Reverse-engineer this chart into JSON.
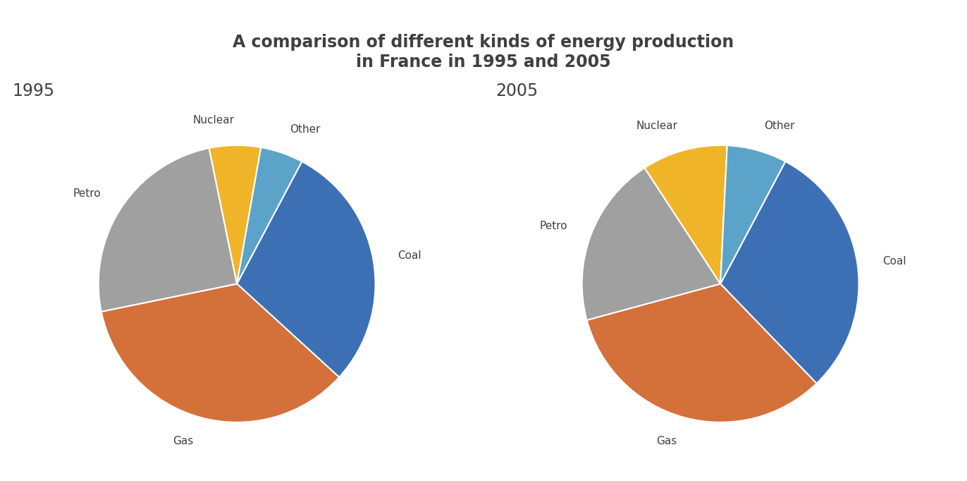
{
  "title": "A comparison of different kinds of energy production\nin France in 1995 and 2005",
  "title_fontsize": 17,
  "title_fontweight": "bold",
  "title_color": "#404040",
  "background_color": "#ffffff",
  "pie1": {
    "year": "1995",
    "labels": [
      "Coal",
      "Gas",
      "Petro",
      "Nuclear",
      "Other"
    ],
    "values": [
      29,
      35,
      25,
      6,
      5
    ],
    "colors": [
      "#3d6fb5",
      "#d4703a",
      "#a0a0a0",
      "#f0b429",
      "#5ba3c9"
    ],
    "startangle": 62
  },
  "pie2": {
    "year": "2005",
    "labels": [
      "Coal",
      "Gas",
      "Petro",
      "Nuclear",
      "Other"
    ],
    "values": [
      30,
      33,
      20,
      10,
      7
    ],
    "colors": [
      "#3d6fb5",
      "#d4703a",
      "#a0a0a0",
      "#f0b429",
      "#5ba3c9"
    ],
    "startangle": 62
  },
  "year_fontsize": 17,
  "year_color": "#404040",
  "label_fontsize": 11,
  "label_color": "#404040"
}
